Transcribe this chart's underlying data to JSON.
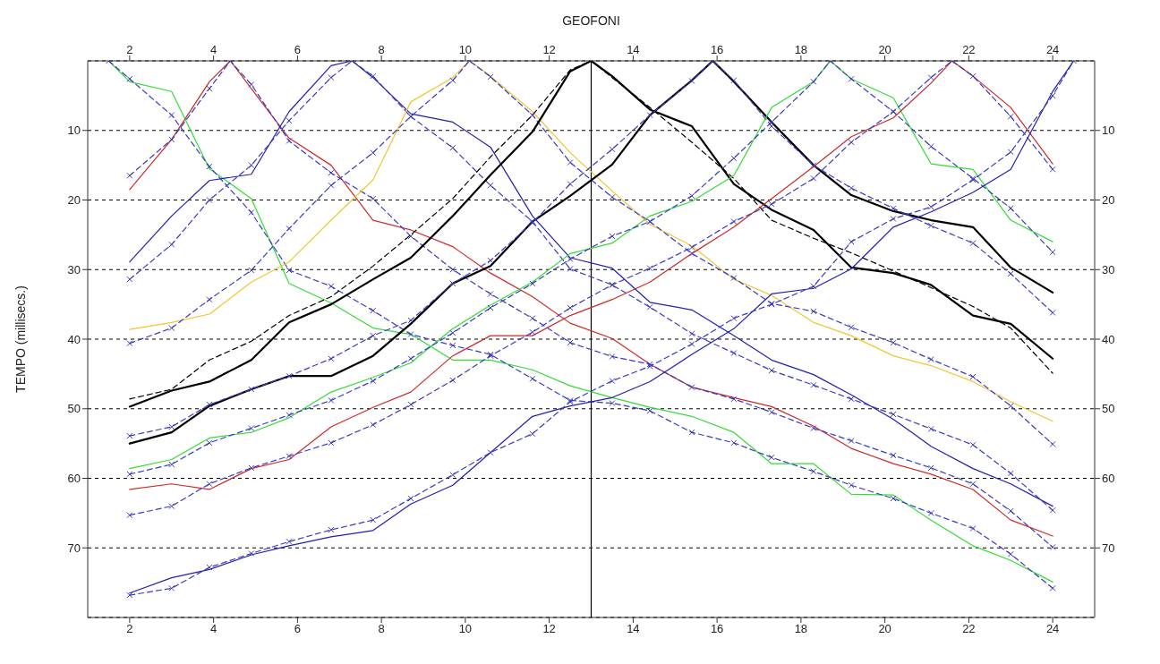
{
  "chart_data": {
    "type": "line",
    "x2label": "GEOFONI",
    "ylabel": "TEMPO (millisecs.)",
    "xlim": [
      1,
      25
    ],
    "xticks": [
      2,
      4,
      6,
      8,
      10,
      12,
      14,
      16,
      18,
      20,
      22,
      24
    ],
    "x2lim": [
      1,
      25
    ],
    "x2ticks": [
      2,
      4,
      6,
      8,
      10,
      12,
      14,
      16,
      18,
      20,
      22,
      24
    ],
    "ylim": [
      80,
      0
    ],
    "yticks": [
      10,
      20,
      30,
      40,
      50,
      60,
      70
    ],
    "y2lim": [
      80,
      0
    ],
    "y2ticks": [
      10,
      20,
      30,
      40,
      50,
      60,
      70
    ],
    "grid": "y",
    "legend": false,
    "ref_lines": [
      {
        "axis": "x",
        "value": 13.0,
        "color": "#000000"
      }
    ],
    "series": [
      {
        "color": "#33dd33",
        "line_style": "solid",
        "marker": "none",
        "x": [
          1.5,
          2.0,
          3.0,
          3.9,
          4.9,
          5.8,
          6.8,
          7.8,
          8.7,
          9.7,
          10.6,
          11.6,
          12.5,
          13.5,
          14.4,
          15.4,
          16.4,
          17.3,
          18.3,
          19.2,
          20.2,
          21.1,
          22.1,
          23.0,
          24.0
        ],
        "values": [
          0,
          3.0,
          4.4,
          15.5,
          19.8,
          32.0,
          34.8,
          38.4,
          39.3,
          43.0,
          43.0,
          44.4,
          46.7,
          48.4,
          49.8,
          51.1,
          53.4,
          57.9,
          57.9,
          62.3,
          62.4,
          66.0,
          69.7,
          71.8,
          74.9
        ]
      },
      {
        "color": "#3a3ac0",
        "line_style": "dashed",
        "marker": "cross",
        "x": [
          1.5,
          2.0,
          3.0,
          3.9,
          4.9,
          5.8,
          6.8,
          7.8,
          8.7,
          9.7,
          10.6,
          11.6,
          12.5,
          13.5,
          14.4,
          15.4,
          16.4,
          17.3,
          18.3,
          19.2,
          20.2,
          21.1,
          22.1,
          23.0,
          24.0
        ],
        "values": [
          0,
          2.6,
          7.8,
          15.2,
          21.8,
          30.1,
          32.4,
          35.9,
          39.3,
          40.9,
          42.2,
          45.7,
          48.8,
          49.2,
          50.3,
          53.4,
          54.9,
          57.0,
          59.0,
          61.0,
          62.9,
          65.0,
          67.2,
          70.9,
          75.8
        ]
      },
      {
        "color": "#cc2a2a",
        "line_style": "solid",
        "marker": "none",
        "x": [
          2.0,
          3.0,
          3.9,
          4.4,
          4.9,
          5.8,
          6.8,
          7.8,
          8.7,
          9.7,
          10.6,
          11.6,
          12.5,
          13.5,
          14.4,
          15.4,
          16.4,
          17.3,
          18.3,
          19.2,
          20.2,
          21.1,
          22.1,
          23.0,
          24.0
        ],
        "values": [
          18.5,
          11.3,
          3.0,
          0,
          4.0,
          11.1,
          15.0,
          22.9,
          24.3,
          26.7,
          30.5,
          33.9,
          37.7,
          39.9,
          43.6,
          46.9,
          48.4,
          49.7,
          52.5,
          55.7,
          57.9,
          59.4,
          61.6,
          66.0,
          68.3
        ]
      },
      {
        "color": "#3a3ac0",
        "line_style": "dashed",
        "marker": "cross",
        "x": [
          2.0,
          3.0,
          3.9,
          4.4,
          4.9,
          5.8,
          6.8,
          7.8,
          8.7,
          9.7,
          10.6,
          11.6,
          12.5,
          13.5,
          14.4,
          15.4,
          16.4,
          17.3,
          18.3,
          19.2,
          20.2,
          21.1,
          22.1,
          23.0,
          24.0
        ],
        "values": [
          16.5,
          11.3,
          4.0,
          0,
          3.4,
          11.5,
          16.1,
          19.8,
          25.2,
          30.0,
          33.5,
          37.0,
          40.5,
          42.5,
          43.6,
          46.9,
          48.6,
          50.5,
          52.8,
          54.6,
          56.7,
          58.5,
          60.8,
          64.7,
          69.9
        ]
      },
      {
        "color": "#2020b0",
        "line_style": "solid",
        "marker": "none",
        "x": [
          2.0,
          3.0,
          3.9,
          4.9,
          5.8,
          6.8,
          7.3,
          7.8,
          8.7,
          9.7,
          10.6,
          11.6,
          12.5,
          13.5,
          14.4,
          15.4,
          16.4,
          17.3,
          18.3,
          19.2,
          20.2,
          21.1,
          22.1,
          23.0,
          24.0
        ],
        "values": [
          28.9,
          22.3,
          17.2,
          16.3,
          7.3,
          0.7,
          0,
          2.4,
          7.6,
          8.8,
          12.4,
          22.3,
          28.3,
          29.8,
          34.7,
          35.8,
          39.5,
          43.0,
          45.1,
          48.0,
          51.5,
          55.4,
          58.6,
          60.8,
          64.0
        ]
      },
      {
        "color": "#3a3ac0",
        "line_style": "dashed",
        "marker": "cross",
        "x": [
          2.0,
          3.0,
          3.9,
          4.9,
          5.8,
          6.8,
          7.3,
          7.8,
          8.7,
          9.7,
          10.6,
          11.6,
          12.5,
          13.5,
          14.4,
          15.4,
          16.4,
          17.3,
          18.3,
          19.2,
          20.2,
          21.1,
          22.1,
          23.0,
          24.0
        ],
        "values": [
          31.4,
          26.4,
          20.0,
          15.0,
          8.6,
          2.4,
          0,
          2.2,
          8.0,
          12.5,
          17.9,
          23.1,
          29.9,
          32.2,
          35.4,
          39.2,
          42.0,
          44.5,
          46.6,
          48.6,
          50.8,
          52.9,
          55.2,
          59.3,
          64.6
        ]
      },
      {
        "color": "#f2c531",
        "line_style": "solid",
        "marker": "none",
        "x": [
          2.0,
          3.0,
          3.9,
          4.9,
          5.8,
          6.8,
          7.8,
          8.7,
          9.7,
          10.1,
          10.6,
          11.6,
          12.5,
          13.5,
          14.4,
          15.4,
          16.4,
          17.3,
          18.3,
          19.2,
          20.2,
          21.1,
          22.1,
          23.0,
          24.0
        ],
        "values": [
          38.6,
          37.6,
          36.4,
          31.8,
          28.9,
          22.9,
          17.1,
          5.9,
          2.4,
          0,
          2.2,
          7.3,
          13.2,
          18.7,
          23.5,
          26.6,
          31.4,
          33.7,
          37.6,
          39.5,
          42.4,
          43.8,
          46.1,
          49.0,
          51.8
        ]
      },
      {
        "color": "#3a3ac0",
        "line_style": "dashed",
        "marker": "cross",
        "x": [
          2.0,
          3.0,
          3.9,
          4.9,
          5.8,
          6.8,
          7.8,
          8.7,
          9.7,
          10.1,
          10.6,
          11.6,
          12.5,
          13.5,
          14.4,
          15.4,
          16.4,
          17.3,
          18.3,
          19.2,
          20.2,
          21.1,
          22.1,
          23.0,
          24.0
        ],
        "values": [
          40.6,
          38.4,
          34.3,
          30.1,
          24.1,
          17.9,
          13.2,
          8.0,
          2.8,
          0,
          2.3,
          7.8,
          14.6,
          19.6,
          23.1,
          27.7,
          31.2,
          34.9,
          36.0,
          38.3,
          40.5,
          42.9,
          45.4,
          49.6,
          55.1
        ]
      },
      {
        "color": "#000000",
        "line_style": "solid",
        "marker": "none",
        "x": [
          2.0,
          3.0,
          3.9,
          4.9,
          5.8,
          6.8,
          7.8,
          8.7,
          9.7,
          10.6,
          11.6,
          12.5,
          13.0,
          13.5,
          14.4,
          15.4,
          16.4,
          17.3,
          18.3,
          19.2,
          20.2,
          21.1,
          22.1,
          23.0,
          24.0
        ],
        "values": [
          49.7,
          47.4,
          46.1,
          43.0,
          37.6,
          35.0,
          31.4,
          28.3,
          22.3,
          16.4,
          10.2,
          1.5,
          0,
          2.2,
          7.0,
          9.4,
          17.7,
          21.4,
          24.3,
          29.7,
          30.5,
          32.2,
          36.6,
          37.8,
          42.8
        ]
      },
      {
        "color": "#000000",
        "line_style": "dashed",
        "marker": "none",
        "x": [
          2.0,
          3.0,
          3.9,
          4.9,
          5.8,
          6.8,
          7.8,
          8.7,
          9.7,
          10.6,
          11.6,
          12.5,
          13.0,
          13.5,
          14.4,
          15.4,
          16.4,
          17.3,
          18.3,
          19.2,
          20.2,
          21.1,
          22.1,
          23.0,
          24.0
        ],
        "values": [
          48.6,
          47.2,
          43.0,
          40.3,
          36.6,
          33.9,
          29.5,
          25.0,
          19.8,
          13.8,
          7.8,
          1.3,
          0,
          2.4,
          6.7,
          11.7,
          16.9,
          22.9,
          25.5,
          27.6,
          30.2,
          32.6,
          35.3,
          38.4,
          44.9
        ]
      },
      {
        "color": "#000000",
        "line_style": "solid",
        "marker": "none",
        "x": [
          2.0,
          3.0,
          3.9,
          4.9,
          5.8,
          6.8,
          7.8,
          8.7,
          9.7,
          10.6,
          11.6,
          12.5,
          13.5,
          14.4,
          15.4,
          15.9,
          16.4,
          17.3,
          18.3,
          19.2,
          20.2,
          21.1,
          22.1,
          23.0,
          24.0
        ],
        "values": [
          55.0,
          53.4,
          49.6,
          47.2,
          45.3,
          45.3,
          42.4,
          37.8,
          32.0,
          29.5,
          23.1,
          19.4,
          14.9,
          7.8,
          2.8,
          0,
          3.0,
          8.8,
          15.0,
          19.3,
          21.6,
          22.9,
          23.9,
          29.7,
          33.3
        ]
      },
      {
        "color": "#3a3ac0",
        "line_style": "dashed",
        "marker": "cross",
        "x": [
          2.0,
          3.0,
          3.9,
          4.9,
          5.8,
          6.8,
          7.8,
          8.7,
          9.7,
          10.6,
          11.6,
          12.5,
          13.5,
          14.4,
          15.4,
          15.9,
          16.4,
          17.3,
          18.3,
          19.2,
          20.2,
          21.1,
          22.1,
          23.0,
          24.0
        ],
        "values": [
          53.9,
          52.6,
          49.4,
          47.2,
          45.3,
          42.8,
          39.5,
          37.3,
          32.0,
          28.7,
          23.3,
          17.7,
          12.7,
          7.8,
          2.9,
          0,
          2.8,
          9.4,
          15.0,
          18.3,
          21.2,
          23.7,
          26.2,
          30.6,
          36.2
        ]
      },
      {
        "color": "#33dd33",
        "line_style": "solid",
        "marker": "none",
        "x": [
          2.0,
          3.0,
          3.9,
          4.9,
          5.8,
          6.8,
          7.8,
          8.7,
          9.7,
          10.6,
          11.6,
          12.5,
          13.5,
          14.4,
          15.4,
          16.4,
          17.3,
          18.3,
          18.7,
          19.2,
          20.2,
          21.1,
          22.1,
          23.0,
          24.0
        ],
        "values": [
          58.6,
          57.3,
          54.2,
          53.4,
          51.3,
          47.6,
          45.5,
          43.4,
          38.5,
          35.1,
          31.8,
          27.7,
          26.2,
          22.3,
          20.2,
          16.5,
          6.7,
          3.0,
          0,
          2.6,
          5.3,
          14.8,
          15.6,
          22.9,
          26.0
        ]
      },
      {
        "color": "#3a3ac0",
        "line_style": "dashed",
        "marker": "cross",
        "x": [
          2.0,
          3.0,
          3.9,
          4.9,
          5.8,
          6.8,
          7.8,
          8.7,
          9.7,
          10.6,
          11.6,
          12.5,
          13.5,
          14.4,
          15.4,
          16.4,
          17.3,
          18.3,
          18.7,
          19.2,
          20.2,
          21.1,
          22.1,
          23.0,
          24.0
        ],
        "values": [
          59.4,
          58.0,
          54.9,
          52.8,
          50.9,
          48.8,
          46.0,
          42.8,
          39.1,
          35.5,
          32.0,
          28.5,
          25.2,
          23.1,
          19.4,
          14.0,
          8.8,
          3.0,
          0,
          2.6,
          7.3,
          12.3,
          16.9,
          21.2,
          27.5
        ]
      },
      {
        "color": "#cc2a2a",
        "line_style": "solid",
        "marker": "none",
        "x": [
          2.0,
          3.0,
          3.9,
          4.9,
          5.8,
          6.8,
          7.8,
          8.7,
          9.7,
          10.6,
          11.6,
          12.5,
          13.5,
          14.4,
          15.4,
          16.4,
          17.3,
          18.3,
          19.2,
          20.2,
          21.1,
          21.6,
          22.1,
          23.0,
          24.0
        ],
        "values": [
          61.6,
          60.8,
          61.6,
          58.6,
          57.3,
          52.6,
          49.8,
          47.6,
          42.4,
          39.5,
          39.5,
          36.6,
          34.3,
          31.8,
          27.7,
          23.9,
          19.8,
          15.2,
          10.9,
          8.2,
          3.2,
          0,
          2.2,
          6.7,
          14.8
        ]
      },
      {
        "color": "#3a3ac0",
        "line_style": "dashed",
        "marker": "cross",
        "x": [
          2.0,
          3.0,
          3.9,
          4.9,
          5.8,
          6.8,
          7.8,
          8.7,
          9.7,
          10.6,
          11.6,
          12.5,
          13.5,
          14.4,
          15.4,
          16.4,
          17.3,
          18.3,
          19.2,
          20.2,
          21.1,
          21.6,
          22.1,
          23.0,
          24.0
        ],
        "values": [
          65.3,
          64.0,
          60.8,
          58.5,
          56.8,
          54.9,
          52.3,
          49.4,
          45.9,
          42.4,
          39.0,
          35.5,
          32.2,
          29.8,
          26.8,
          23.1,
          20.6,
          16.9,
          11.7,
          7.3,
          2.4,
          0,
          2.2,
          8.0,
          15.6
        ]
      },
      {
        "color": "#2020b0",
        "line_style": "solid",
        "marker": "none",
        "x": [
          2.0,
          3.0,
          3.9,
          4.9,
          5.8,
          6.8,
          7.8,
          8.7,
          9.7,
          10.6,
          11.6,
          12.5,
          13.5,
          14.4,
          15.4,
          16.4,
          17.3,
          18.3,
          19.2,
          20.2,
          21.1,
          22.1,
          23.0,
          24.0,
          24.5
        ],
        "values": [
          76.5,
          74.3,
          73.1,
          71.0,
          69.7,
          68.4,
          67.5,
          63.7,
          61.0,
          56.3,
          51.1,
          49.6,
          48.4,
          46.1,
          42.2,
          38.5,
          33.5,
          32.7,
          29.9,
          23.9,
          21.7,
          18.9,
          15.6,
          4.4,
          0
        ]
      },
      {
        "color": "#3a3ac0",
        "line_style": "dashed",
        "marker": "cross",
        "x": [
          2.0,
          3.0,
          3.9,
          4.9,
          5.8,
          6.8,
          7.8,
          8.7,
          9.7,
          10.6,
          11.6,
          12.5,
          13.5,
          14.4,
          15.4,
          16.4,
          17.3,
          18.3,
          19.2,
          20.2,
          21.1,
          22.1,
          23.0,
          24.0,
          24.5
        ],
        "values": [
          76.8,
          75.8,
          72.8,
          70.8,
          69.1,
          67.4,
          66.0,
          62.9,
          59.5,
          56.3,
          53.6,
          49.0,
          46.0,
          43.9,
          40.7,
          37.0,
          35.0,
          32.4,
          26.0,
          22.7,
          21.0,
          17.1,
          13.1,
          5.0,
          0
        ]
      }
    ]
  }
}
